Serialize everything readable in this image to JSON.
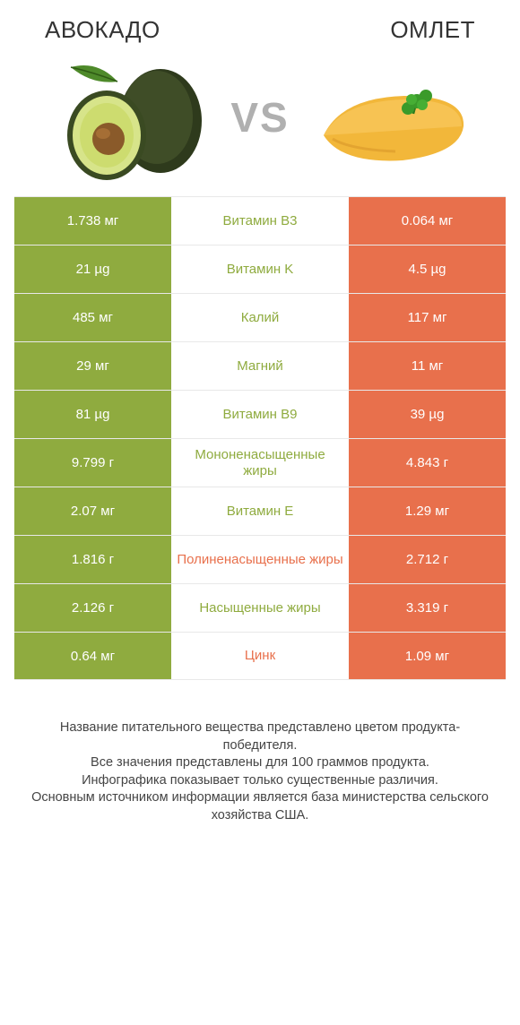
{
  "colors": {
    "left": "#8fab3f",
    "right": "#e8704c",
    "label_left": "#8fab3f",
    "label_right": "#e8704c",
    "vs": "#b0b0b0",
    "border": "#e8e8e8",
    "text": "#333333"
  },
  "header": {
    "left_title": "АВОКАДО",
    "right_title": "ОМЛЕТ"
  },
  "vs": "VS",
  "rows": [
    {
      "left": "1.738 мг",
      "label": "Витамин B3",
      "right": "0.064 мг",
      "winner": "left"
    },
    {
      "left": "21 µg",
      "label": "Витамин K",
      "right": "4.5 µg",
      "winner": "left"
    },
    {
      "left": "485 мг",
      "label": "Калий",
      "right": "117 мг",
      "winner": "left"
    },
    {
      "left": "29 мг",
      "label": "Магний",
      "right": "11 мг",
      "winner": "left"
    },
    {
      "left": "81 µg",
      "label": "Витамин B9",
      "right": "39 µg",
      "winner": "left"
    },
    {
      "left": "9.799 г",
      "label": "Мононенасыщенные жиры",
      "right": "4.843 г",
      "winner": "left"
    },
    {
      "left": "2.07 мг",
      "label": "Витамин E",
      "right": "1.29 мг",
      "winner": "left"
    },
    {
      "left": "1.816 г",
      "label": "Полиненасыщенные жиры",
      "right": "2.712 г",
      "winner": "right"
    },
    {
      "left": "2.126 г",
      "label": "Насыщенные жиры",
      "right": "3.319 г",
      "winner": "left"
    },
    {
      "left": "0.64 мг",
      "label": "Цинк",
      "right": "1.09 мг",
      "winner": "right"
    }
  ],
  "footer": {
    "line1": "Название питательного вещества представлено цветом продукта-победителя.",
    "line2": "Все значения представлены для 100 граммов продукта.",
    "line3": "Инфографика показывает только существенные различия.",
    "line4": "Основным источником информации является база министерства сельского хозяйства США."
  }
}
